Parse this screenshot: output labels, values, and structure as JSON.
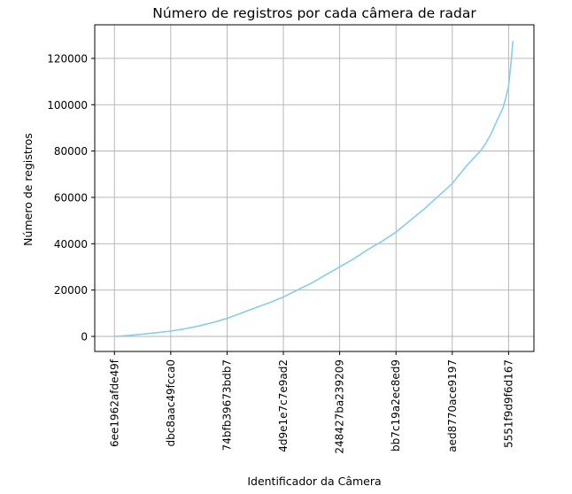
{
  "chart_data": {
    "type": "line",
    "title": "Número de registros por cada câmera de radar",
    "xlabel": "Identificador da Câmera",
    "ylabel": "Número de registros",
    "grid": true,
    "line_color": "#87ceeb",
    "x_tick_labels": [
      "6ee1962afde49f",
      "dbc8aac49fcca0",
      "74bfb39673bdb7",
      "4d9e1e7c7e9ad2",
      "248427ba239209",
      "bb7c19a2ec8ed9",
      "aed8770ace9197",
      "5551f9d9f6d167"
    ],
    "x_tick_positions": [
      0,
      200,
      400,
      600,
      800,
      1000,
      1200,
      1400
    ],
    "y_ticks": [
      0,
      20000,
      40000,
      60000,
      80000,
      100000,
      120000
    ],
    "y_tick_labels": [
      "0",
      "20000",
      "40000",
      "60000",
      "80000",
      "100000",
      "120000"
    ],
    "xlim": [
      -70,
      1490
    ],
    "ylim": [
      -6500,
      134500
    ],
    "series": [
      {
        "x": [
          0,
          50,
          100,
          150,
          200,
          250,
          300,
          350,
          400,
          450,
          500,
          550,
          600,
          650,
          700,
          750,
          800,
          850,
          900,
          950,
          1000,
          1050,
          1100,
          1150,
          1200,
          1250,
          1300,
          1320,
          1340,
          1360,
          1380,
          1390,
          1400,
          1405,
          1410,
          1415
        ],
        "y": [
          0,
          400,
          1000,
          1600,
          2300,
          3300,
          4500,
          6000,
          7800,
          10000,
          12300,
          14500,
          17000,
          20000,
          23000,
          26500,
          30000,
          33500,
          37500,
          41000,
          45000,
          50000,
          55000,
          60500,
          66000,
          73500,
          80000,
          83500,
          88000,
          93500,
          98500,
          103000,
          108000,
          114000,
          120000,
          127500
        ]
      }
    ]
  }
}
